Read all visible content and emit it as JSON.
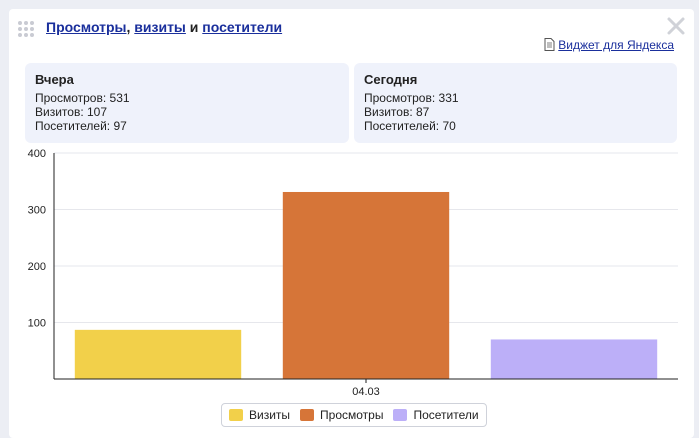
{
  "header": {
    "title_link_views": "Просмотры",
    "title_comma": ",",
    "title_link_visits": "визиты",
    "title_and": "и",
    "title_link_visitors": "посетители",
    "yandex_widget_link": "Виджет для Яндекса"
  },
  "stats": {
    "yesterday": {
      "heading": "Вчера",
      "views": "Просмотров: 531",
      "visits": "Визитов: 107",
      "visitors": "Посетителей: 97"
    },
    "today": {
      "heading": "Сегодня",
      "views": "Просмотров: 331",
      "visits": "Визитов: 87",
      "visitors": "Посетителей: 70"
    }
  },
  "chart_data": {
    "type": "bar",
    "categories": [
      "04.03"
    ],
    "series": [
      {
        "name": "Визиты",
        "values": [
          87
        ],
        "color": "#f2d04a"
      },
      {
        "name": "Просмотры",
        "values": [
          331
        ],
        "color": "#d67538"
      },
      {
        "name": "Посетители",
        "values": [
          70
        ],
        "color": "#bcaff8"
      }
    ],
    "title": "",
    "xlabel": "",
    "ylabel": "",
    "ylim": [
      0,
      400
    ],
    "yticks": [
      100,
      200,
      300,
      400
    ],
    "grid": true,
    "legend": "bottom-center"
  },
  "colors": {
    "link": "#1a2f9c",
    "stat_box_bg": "#eff2fb",
    "page_bg": "#eceef4"
  },
  "icons": {
    "drag": "drag-handle-icon",
    "close": "close-icon",
    "document": "document-icon"
  }
}
